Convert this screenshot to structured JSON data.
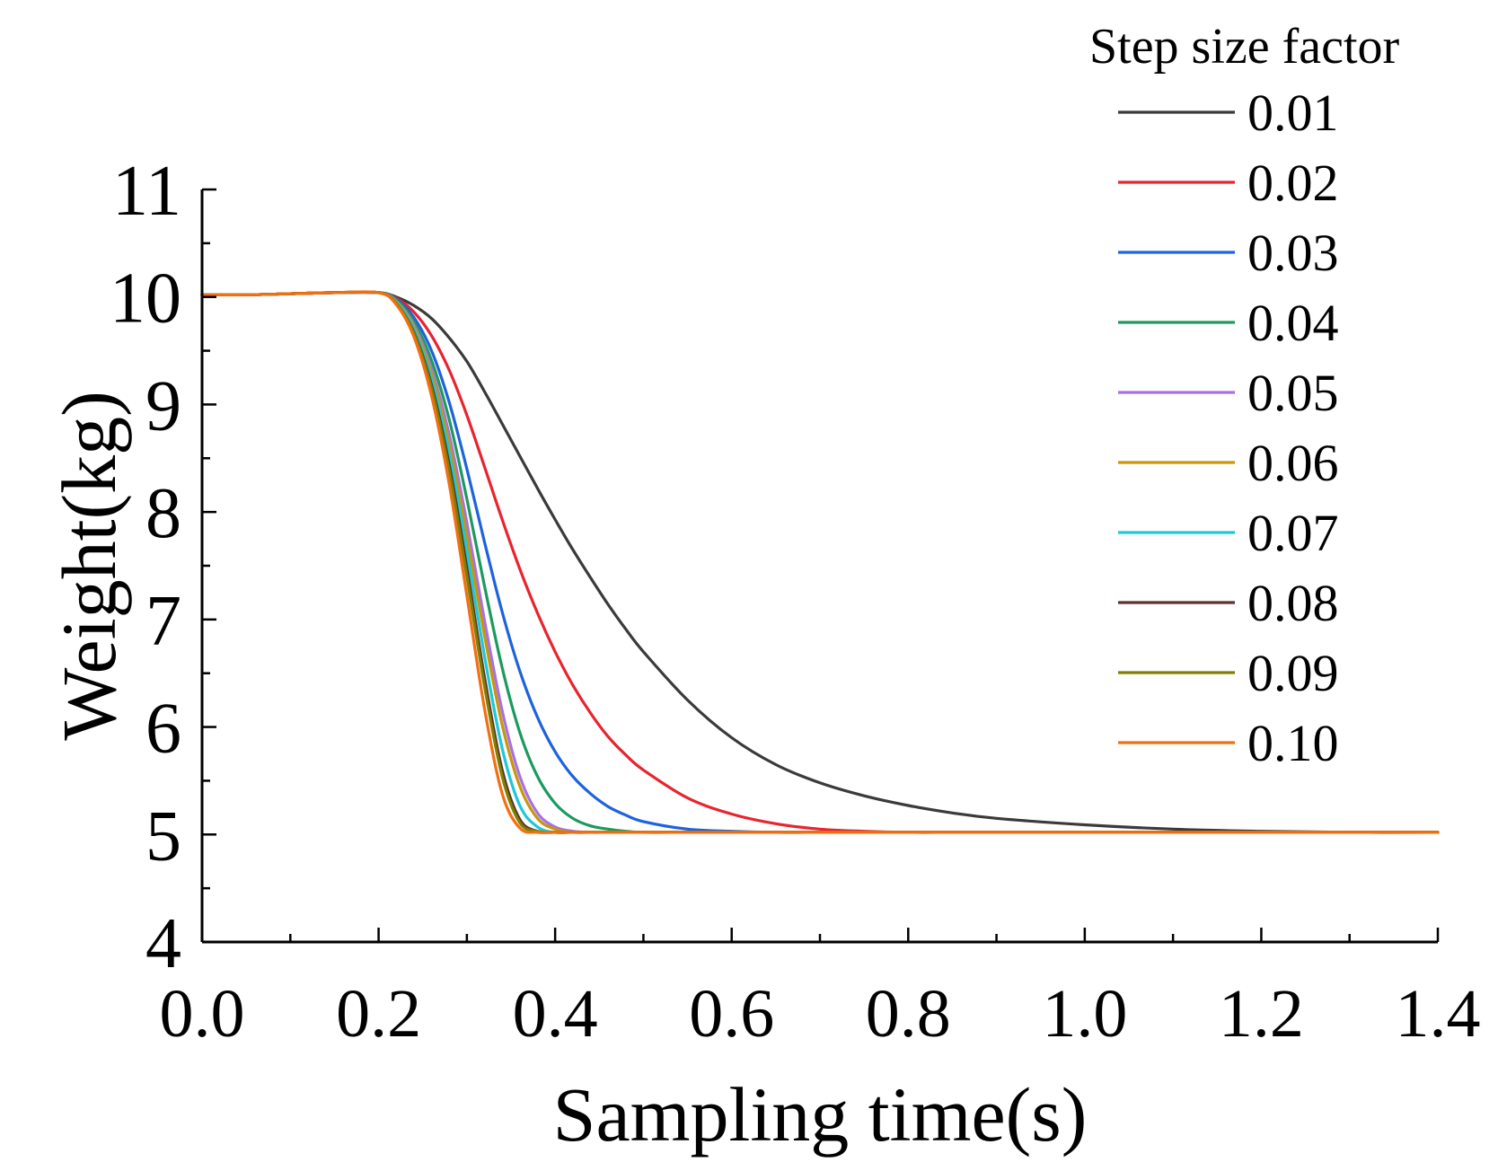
{
  "chart_data": {
    "type": "line",
    "title": "",
    "xlabel": "Sampling time(s)",
    "ylabel": "Weight(kg)",
    "xlim": [
      0.0,
      1.4
    ],
    "ylim": [
      4,
      11
    ],
    "xticks": [
      "0.0",
      "0.2",
      "0.4",
      "0.6",
      "0.8",
      "1.0",
      "1.2",
      "1.4"
    ],
    "yticks": [
      "4",
      "5",
      "6",
      "7",
      "8",
      "9",
      "10",
      "11"
    ],
    "grid": false,
    "legend": {
      "title": "Step size factor",
      "position": "top-right"
    },
    "x": [
      0.0,
      0.05,
      0.1,
      0.15,
      0.2,
      0.22,
      0.24,
      0.26,
      0.28,
      0.3,
      0.32,
      0.34,
      0.36,
      0.38,
      0.4,
      0.42,
      0.44,
      0.46,
      0.48,
      0.5,
      0.55,
      0.6,
      0.65,
      0.7,
      0.75,
      0.8,
      0.85,
      0.9,
      1.0,
      1.1,
      1.2,
      1.3,
      1.4
    ],
    "series": [
      {
        "name": "0.01",
        "color": "#3a3a3a",
        "values": [
          10.02,
          10.02,
          10.03,
          10.04,
          10.04,
          10.0,
          9.92,
          9.8,
          9.62,
          9.4,
          9.12,
          8.82,
          8.52,
          8.22,
          7.93,
          7.65,
          7.39,
          7.14,
          6.91,
          6.7,
          6.25,
          5.9,
          5.65,
          5.48,
          5.36,
          5.27,
          5.2,
          5.15,
          5.09,
          5.05,
          5.03,
          5.02,
          5.02
        ]
      },
      {
        "name": "0.02",
        "color": "#e8242e",
        "values": [
          10.02,
          10.02,
          10.03,
          10.04,
          10.04,
          9.99,
          9.86,
          9.64,
          9.32,
          8.9,
          8.42,
          7.93,
          7.47,
          7.06,
          6.7,
          6.39,
          6.13,
          5.91,
          5.74,
          5.6,
          5.34,
          5.19,
          5.1,
          5.05,
          5.03,
          5.02,
          5.02,
          5.02,
          5.02,
          5.02,
          5.02,
          5.02,
          5.02
        ]
      },
      {
        "name": "0.03",
        "color": "#1e62dc",
        "values": [
          10.02,
          10.02,
          10.03,
          10.04,
          10.04,
          9.98,
          9.81,
          9.5,
          9.02,
          8.4,
          7.72,
          7.07,
          6.52,
          6.09,
          5.77,
          5.54,
          5.38,
          5.26,
          5.18,
          5.12,
          5.05,
          5.03,
          5.02,
          5.02,
          5.02,
          5.02,
          5.02,
          5.02,
          5.02,
          5.02,
          5.02,
          5.02,
          5.02
        ]
      },
      {
        "name": "0.04",
        "color": "#1c9a5e",
        "values": [
          10.02,
          10.02,
          10.03,
          10.04,
          10.04,
          9.97,
          9.77,
          9.41,
          8.86,
          8.12,
          7.31,
          6.55,
          5.95,
          5.54,
          5.29,
          5.15,
          5.08,
          5.05,
          5.03,
          5.02,
          5.02,
          5.02,
          5.02,
          5.02,
          5.02,
          5.02,
          5.02,
          5.02,
          5.02,
          5.02,
          5.02,
          5.02,
          5.02
        ]
      },
      {
        "name": "0.05",
        "color": "#a671e8",
        "values": [
          10.02,
          10.02,
          10.03,
          10.04,
          10.04,
          9.96,
          9.74,
          9.33,
          8.72,
          7.9,
          6.99,
          6.15,
          5.54,
          5.2,
          5.07,
          5.03,
          5.02,
          5.02,
          5.02,
          5.02,
          5.02,
          5.02,
          5.02,
          5.02,
          5.02,
          5.02,
          5.02,
          5.02,
          5.02,
          5.02,
          5.02,
          5.02,
          5.02
        ]
      },
      {
        "name": "0.06",
        "color": "#c9960a",
        "values": [
          10.02,
          10.02,
          10.03,
          10.04,
          10.04,
          9.96,
          9.72,
          9.29,
          8.64,
          7.78,
          6.85,
          6.02,
          5.45,
          5.15,
          5.05,
          5.02,
          5.02,
          5.02,
          5.02,
          5.02,
          5.02,
          5.02,
          5.02,
          5.02,
          5.02,
          5.02,
          5.02,
          5.02,
          5.02,
          5.02,
          5.02,
          5.02,
          5.02
        ]
      },
      {
        "name": "0.07",
        "color": "#1ec8d6",
        "values": [
          10.02,
          10.02,
          10.03,
          10.04,
          10.04,
          9.95,
          9.7,
          9.24,
          8.55,
          7.64,
          6.66,
          5.8,
          5.27,
          5.07,
          5.02,
          5.02,
          5.02,
          5.02,
          5.02,
          5.02,
          5.02,
          5.02,
          5.02,
          5.02,
          5.02,
          5.02,
          5.02,
          5.02,
          5.02,
          5.02,
          5.02,
          5.02,
          5.02
        ]
      },
      {
        "name": "0.08",
        "color": "#5a3232",
        "values": [
          10.02,
          10.02,
          10.03,
          10.04,
          10.04,
          9.94,
          9.67,
          9.18,
          8.44,
          7.48,
          6.46,
          5.6,
          5.14,
          5.03,
          5.02,
          5.02,
          5.02,
          5.02,
          5.02,
          5.02,
          5.02,
          5.02,
          5.02,
          5.02,
          5.02,
          5.02,
          5.02,
          5.02,
          5.02,
          5.02,
          5.02,
          5.02,
          5.02
        ]
      },
      {
        "name": "0.09",
        "color": "#808000",
        "values": [
          10.02,
          10.02,
          10.03,
          10.04,
          10.04,
          9.94,
          9.66,
          9.15,
          8.38,
          7.4,
          6.38,
          5.54,
          5.11,
          5.03,
          5.02,
          5.02,
          5.02,
          5.02,
          5.02,
          5.02,
          5.02,
          5.02,
          5.02,
          5.02,
          5.02,
          5.02,
          5.02,
          5.02,
          5.02,
          5.02,
          5.02,
          5.02,
          5.02
        ]
      },
      {
        "name": "0.10",
        "color": "#f26e12",
        "values": [
          10.02,
          10.02,
          10.03,
          10.04,
          10.04,
          9.93,
          9.63,
          9.08,
          8.26,
          7.22,
          6.17,
          5.38,
          5.06,
          5.02,
          5.02,
          5.02,
          5.02,
          5.02,
          5.02,
          5.02,
          5.02,
          5.02,
          5.02,
          5.02,
          5.02,
          5.02,
          5.02,
          5.02,
          5.02,
          5.02,
          5.02,
          5.02,
          5.02
        ]
      }
    ]
  }
}
